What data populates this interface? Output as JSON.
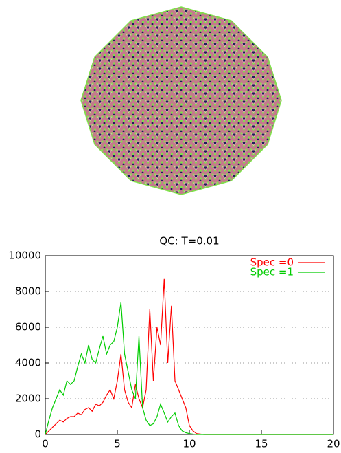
{
  "chart_data": {
    "type": "line",
    "title": "QC: T=0.01",
    "x": [
      0,
      0.25,
      0.5,
      0.75,
      1,
      1.25,
      1.5,
      1.75,
      2,
      2.25,
      2.5,
      2.75,
      3,
      3.25,
      3.5,
      3.75,
      4,
      4.25,
      4.5,
      4.75,
      5,
      5.25,
      5.5,
      5.75,
      6,
      6.25,
      6.5,
      6.75,
      7,
      7.25,
      7.5,
      7.75,
      8,
      8.25,
      8.5,
      8.75,
      9,
      9.25,
      9.5,
      9.75,
      10,
      10.25,
      10.5,
      11,
      12,
      13,
      14,
      15,
      16,
      17,
      18,
      19,
      20
    ],
    "series": [
      {
        "name": "Spec =0",
        "color": "#ff0000",
        "values": [
          0,
          200,
          400,
          600,
          800,
          700,
          900,
          1000,
          1000,
          1200,
          1100,
          1400,
          1500,
          1300,
          1700,
          1600,
          1800,
          2200,
          2500,
          2000,
          3000,
          4500,
          2500,
          1800,
          1500,
          2800,
          2000,
          1500,
          2500,
          7000,
          3000,
          6000,
          5000,
          8700,
          4000,
          7200,
          3000,
          2500,
          2000,
          1500,
          500,
          200,
          50,
          0,
          0,
          0,
          0,
          0,
          0,
          0,
          0,
          0,
          0
        ]
      },
      {
        "name": "Spec =1",
        "color": "#00cc00",
        "values": [
          0,
          800,
          1500,
          2000,
          2500,
          2200,
          3000,
          2800,
          3000,
          3800,
          4500,
          4000,
          5000,
          4200,
          4000,
          4800,
          5500,
          4500,
          5000,
          5200,
          6000,
          7400,
          4500,
          3500,
          2500,
          2000,
          5500,
          1500,
          800,
          500,
          600,
          1000,
          1700,
          1200,
          700,
          1000,
          1200,
          500,
          200,
          100,
          50,
          20,
          0,
          0,
          0,
          0,
          0,
          0,
          0,
          0,
          0,
          0,
          0
        ]
      }
    ],
    "xlim": [
      0,
      20
    ],
    "xticks": [
      0,
      5,
      10,
      15,
      20
    ],
    "ylim": [
      0,
      10000
    ],
    "yticks": [
      0,
      2000,
      4000,
      6000,
      8000,
      10000
    ],
    "grid": true,
    "legend": "top-right"
  }
}
